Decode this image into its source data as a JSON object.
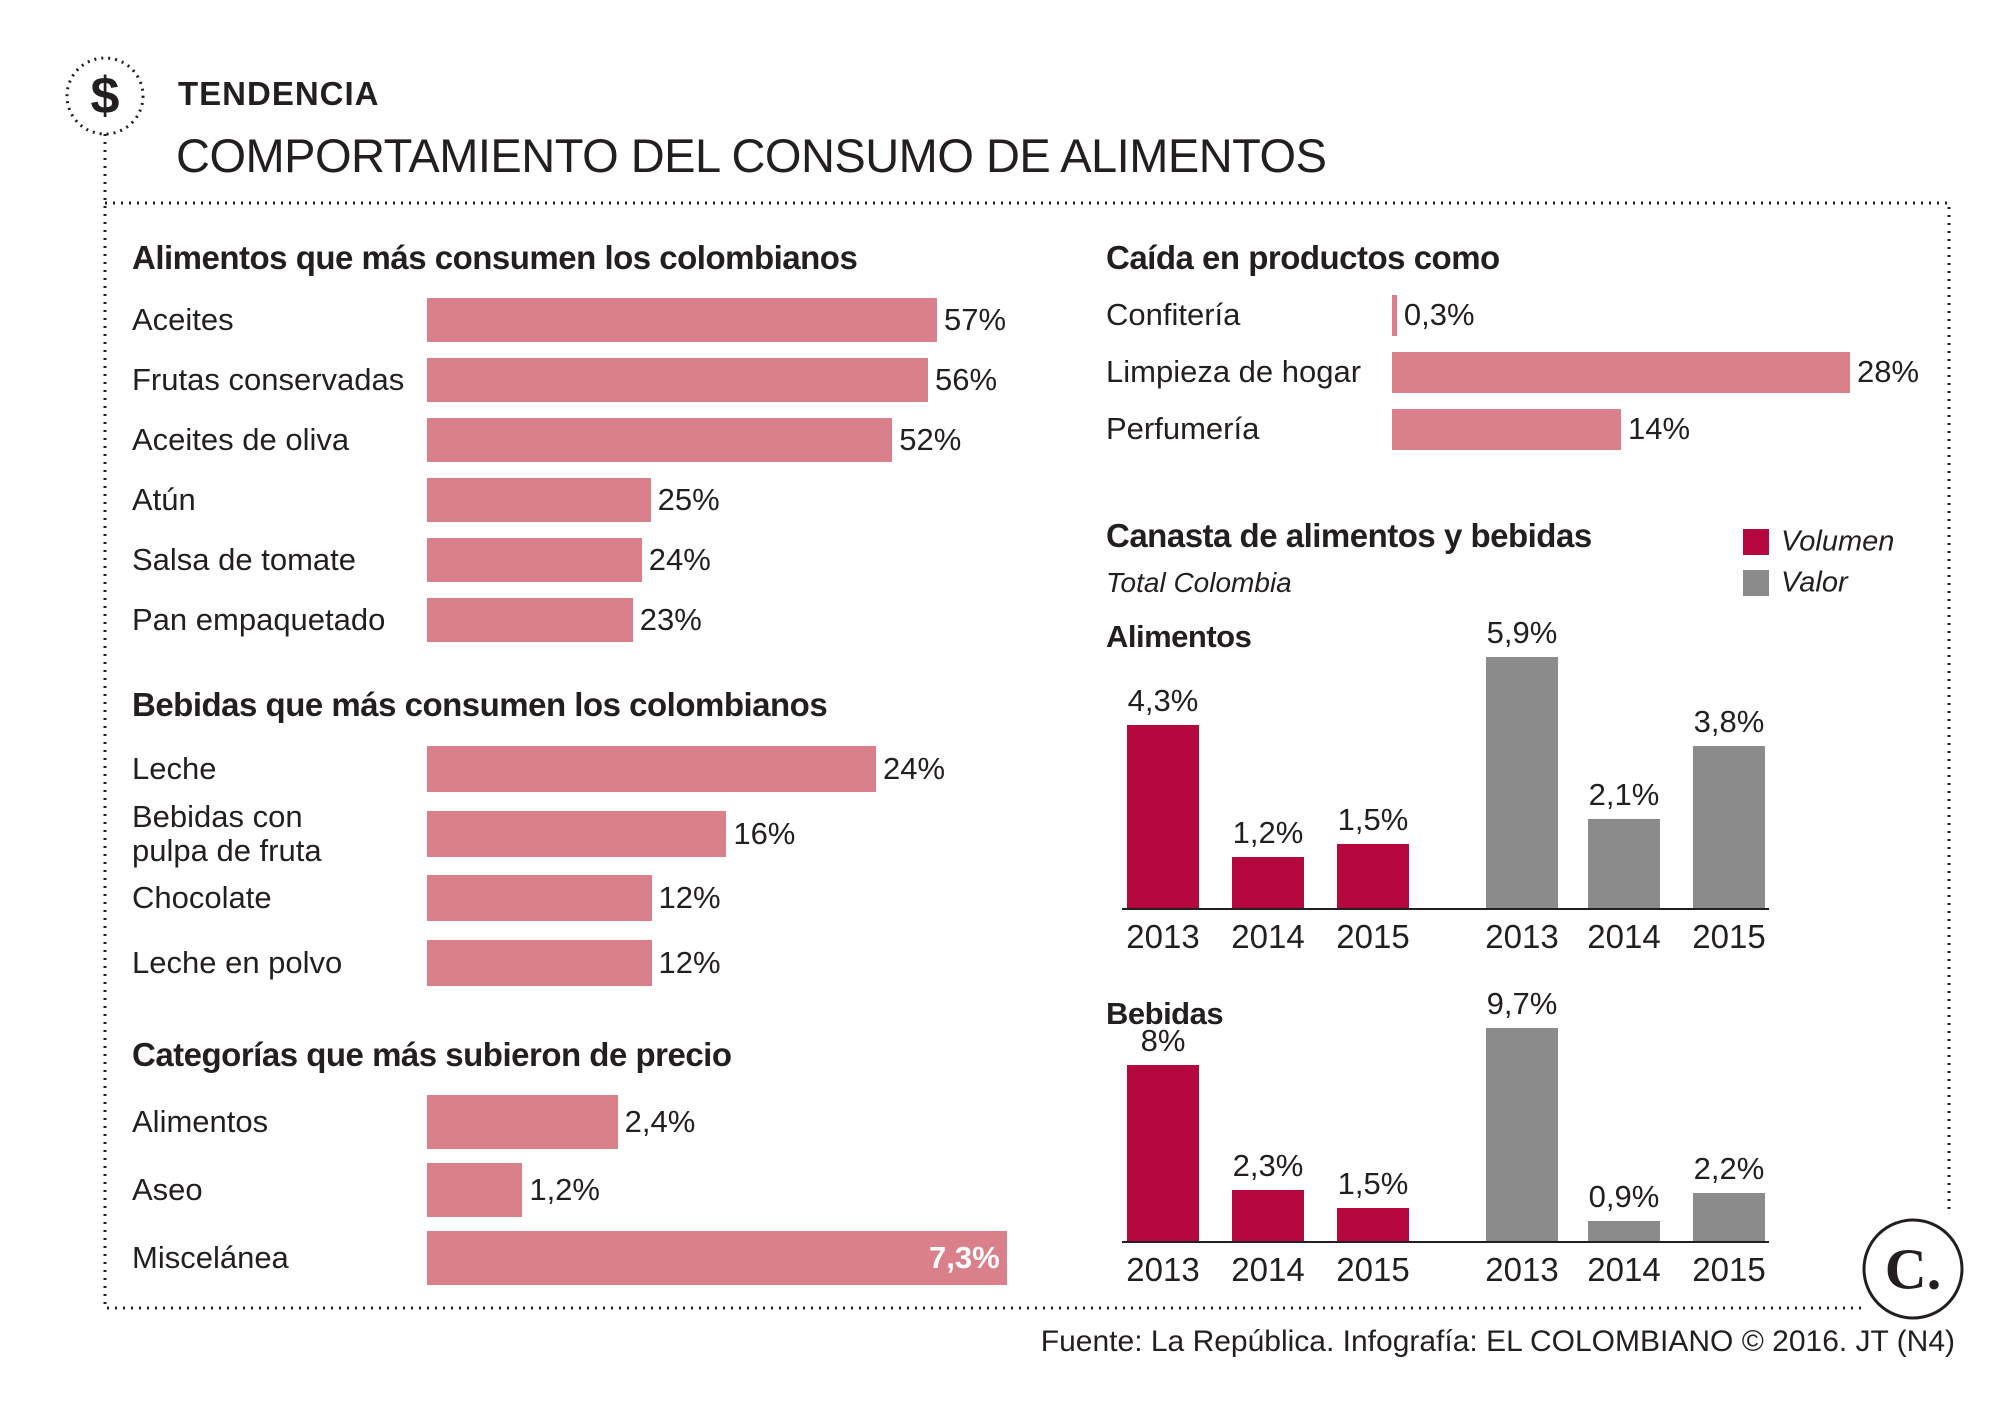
{
  "header": {
    "icon": "$",
    "kicker": "TENDENCIA",
    "title": "COMPORTAMIENTO DEL CONSUMO DE ALIMENTOS"
  },
  "chart_data": [
    {
      "type": "hbar",
      "title": "Alimentos que más consumen los colombianos",
      "categories": [
        "Aceites",
        "Frutas conservadas",
        "Aceites de oliva",
        "Atún",
        "Salsa de tomate",
        "Pan empaquetado"
      ],
      "values": [
        57,
        56,
        52,
        25,
        24,
        23
      ],
      "value_labels": [
        "57%",
        "56%",
        "52%",
        "25%",
        "24%",
        "23%"
      ],
      "color": "#d9808a"
    },
    {
      "type": "hbar",
      "title": "Bebidas que más consumen los colombianos",
      "categories": [
        "Leche",
        "Bebidas con\npulpa de fruta",
        "Chocolate",
        "Leche en polvo"
      ],
      "values": [
        24,
        16,
        12,
        12
      ],
      "value_labels": [
        "24%",
        "16%",
        "12%",
        "12%"
      ],
      "color": "#d9808a"
    },
    {
      "type": "hbar",
      "title": "Categorías que más subieron de precio",
      "categories": [
        "Alimentos",
        "Aseo",
        "Miscelánea"
      ],
      "values": [
        2.4,
        1.2,
        7.3
      ],
      "value_labels": [
        "2,4%",
        "1,2%",
        "7,3%"
      ],
      "color": "#d9808a"
    },
    {
      "type": "hbar",
      "title": "Caída en productos como",
      "categories": [
        "Confitería",
        "Limpieza de hogar",
        "Perfumería"
      ],
      "values": [
        0.3,
        28,
        14
      ],
      "value_labels": [
        "0,3%",
        "28%",
        "14%"
      ],
      "color": "#d9808a"
    },
    {
      "type": "bar",
      "title": "Canasta de alimentos y bebidas",
      "subtitle": "Total Colombia",
      "series": [
        {
          "name": "Volumen",
          "color": "#b5083f"
        },
        {
          "name": "Valor",
          "color": "#8b8b8b"
        }
      ],
      "panels": [
        {
          "title": "Alimentos",
          "categories": [
            "2013",
            "2014",
            "2015"
          ],
          "values": [
            [
              4.3,
              1.2,
              1.5
            ],
            [
              5.9,
              2.1,
              3.8
            ]
          ],
          "value_labels": [
            [
              "4,3%",
              "1,2%",
              "1,5%"
            ],
            [
              "5,9%",
              "2,1%",
              "3,8%"
            ]
          ]
        },
        {
          "title": "Bebidas",
          "categories": [
            "2013",
            "2014",
            "2015"
          ],
          "values": [
            [
              8,
              2.3,
              1.5
            ],
            [
              9.7,
              0.9,
              2.2
            ]
          ],
          "value_labels": [
            [
              "8%",
              "2,3%",
              "1,5%"
            ],
            [
              "9,7%",
              "0,9%",
              "2,2%"
            ]
          ]
        }
      ]
    }
  ],
  "logo": "C.",
  "source": "Fuente: La República. Infografía: EL COLOMBIANO © 2016. JT (N4)"
}
